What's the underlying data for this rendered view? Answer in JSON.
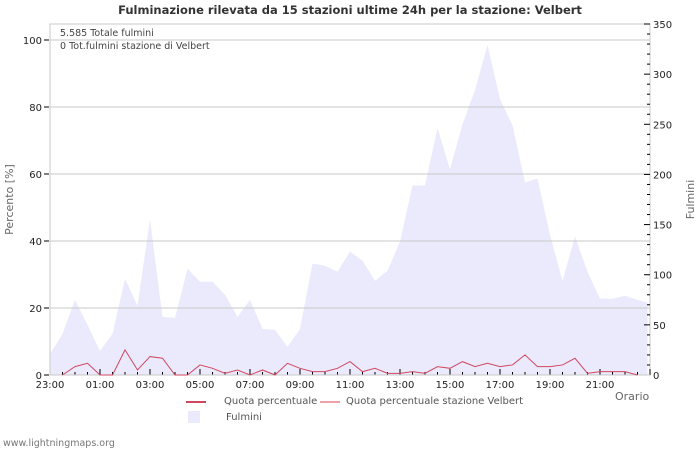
{
  "title": "Fulminazione rilevata da 15 stazioni ultime 24h per la stazione: Velbert",
  "info": {
    "total_label": "5.585 Totale fulmini",
    "station_label": "0 Tot.fulmini stazione di Velbert"
  },
  "axes": {
    "left_label": "Percento   [%]",
    "right_label": "Fulmini",
    "x_label": "Orario",
    "left_ticks": [
      "0",
      "20",
      "40",
      "60",
      "80",
      "100"
    ],
    "right_ticks": [
      "0",
      "50",
      "100",
      "150",
      "200",
      "250",
      "300",
      "350"
    ],
    "x_ticks": [
      "23:00",
      "01:00",
      "03:00",
      "05:00",
      "07:00",
      "09:00",
      "11:00",
      "13:00",
      "15:00",
      "17:00",
      "19:00",
      "21:00"
    ]
  },
  "legend": {
    "quota": "Quota percentuale",
    "quota_station": "Quota percentuale stazione Velbert",
    "fulmini": "Fulmini"
  },
  "colors": {
    "quota": "#d0485e",
    "quota_station": "#f0a0a8",
    "fulmini_fill": "#eaeafc",
    "grid": "#c8c8c8"
  },
  "footer": "www.lightningmaps.org",
  "chart_data": {
    "type": "area",
    "title": "Fulminazione rilevata da 15 stazioni ultime 24h per la stazione: Velbert",
    "xlabel": "Orario",
    "ylabel": "Percento [%]",
    "y2label": "Fulmini",
    "ylim": [
      0,
      105
    ],
    "y2lim": [
      0,
      350
    ],
    "grid": true,
    "legend_position": "bottom",
    "x": [
      "23:00",
      "23:30",
      "00:00",
      "00:30",
      "01:00",
      "01:30",
      "02:00",
      "02:30",
      "03:00",
      "03:30",
      "04:00",
      "04:30",
      "05:00",
      "05:30",
      "06:00",
      "06:30",
      "07:00",
      "07:30",
      "08:00",
      "08:30",
      "09:00",
      "09:30",
      "10:00",
      "10:30",
      "11:00",
      "11:30",
      "12:00",
      "12:30",
      "13:00",
      "13:30",
      "14:00",
      "14:30",
      "15:00",
      "15:30",
      "16:00",
      "16:30",
      "17:00",
      "17:30",
      "18:00",
      "18:30",
      "19:00",
      "19:30",
      "20:00",
      "20:30",
      "21:00",
      "21:30",
      "22:00",
      "22:30"
    ],
    "series": [
      {
        "name": "Fulmini",
        "axis": "right",
        "type": "area",
        "values": [
          21,
          41,
          75,
          50,
          24,
          41,
          96,
          69,
          155,
          58,
          57,
          106,
          93,
          93,
          80,
          58,
          75,
          46,
          45,
          28,
          46,
          111,
          109,
          103,
          123,
          114,
          94,
          104,
          133,
          189,
          189,
          246,
          205,
          250,
          284,
          329,
          275,
          249,
          192,
          196,
          140,
          94,
          138,
          103,
          76,
          76,
          79,
          75
        ]
      },
      {
        "name": "Quota percentuale",
        "axis": "left",
        "type": "line",
        "values": [
          null,
          0,
          2.5,
          3.5,
          0,
          0,
          7.5,
          1.5,
          5.5,
          5,
          0,
          0,
          3,
          2,
          0.5,
          1.5,
          0,
          1.5,
          0,
          3.5,
          2,
          1,
          1,
          2,
          4,
          1,
          2,
          0.5,
          0.5,
          1,
          0.5,
          2.5,
          2,
          4,
          2.5,
          3.5,
          2.5,
          3,
          6,
          2.5,
          2.5,
          3,
          5,
          0.5,
          1,
          1,
          1,
          0
        ]
      },
      {
        "name": "Quota percentuale stazione Velbert",
        "axis": "left",
        "type": "line",
        "values": []
      }
    ]
  }
}
